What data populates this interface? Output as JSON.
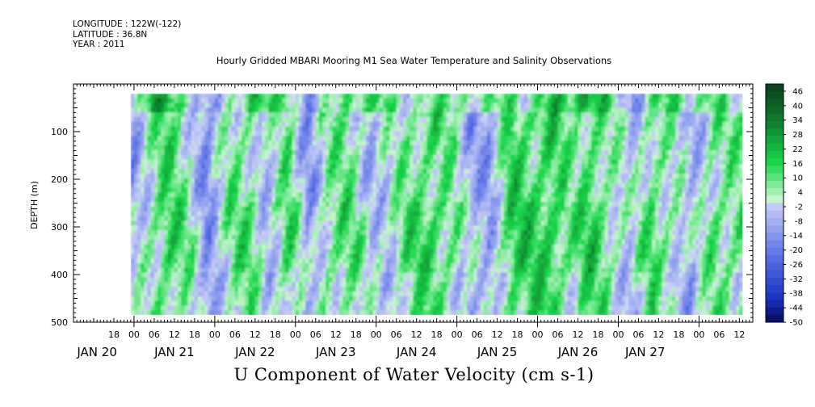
{
  "header": {
    "longitude": "LONGITUDE : 122W(-122)",
    "latitude": "LATITUDE : 36.8N",
    "year": "YEAR : 2011"
  },
  "chart_data": {
    "type": "heatmap",
    "title": "Hourly Gridded MBARI Mooring M1 Sea Water Temperature and Salinity Observations",
    "xlabel": "U Component of Water Velocity (cm s-1)",
    "ylabel": "DEPTH (m)",
    "ylim": [
      500,
      0
    ],
    "y_ticks": [
      "100",
      "200",
      "300",
      "400",
      "500"
    ],
    "y_tick_values": [
      100,
      200,
      300,
      400,
      500
    ],
    "x_hour_ticks": [
      "18",
      "00",
      "06",
      "12",
      "18",
      "00",
      "06",
      "12",
      "18",
      "00",
      "06",
      "12",
      "18",
      "00",
      "06",
      "12",
      "18",
      "00",
      "06",
      "12",
      "18",
      "00",
      "06",
      "12",
      "18",
      "00",
      "06",
      "12",
      "18",
      "00",
      "06",
      "12"
    ],
    "x_hour_values": [
      -6,
      0,
      6,
      12,
      18,
      24,
      30,
      36,
      42,
      48,
      54,
      60,
      66,
      72,
      78,
      84,
      90,
      96,
      102,
      108,
      114,
      120,
      126,
      132,
      138,
      144,
      150,
      156,
      162,
      168,
      174,
      180
    ],
    "x_day_labels": [
      "JAN 20",
      "JAN 21",
      "JAN 22",
      "JAN 23",
      "JAN 24",
      "JAN 25",
      "JAN 26",
      "JAN 27"
    ],
    "x_day_label_hours": [
      -11,
      12,
      36,
      60,
      84,
      108,
      132,
      152
    ],
    "xlim_hours": [
      -18,
      184
    ],
    "data_x_range_hours": [
      -1,
      181
    ],
    "data_y_range_m": [
      20,
      485
    ],
    "colorbar": {
      "labels": [
        "46",
        "40",
        "34",
        "28",
        "22",
        "16",
        "10",
        "4",
        "-2",
        "-8",
        "-14",
        "-20",
        "-26",
        "-32",
        "-38",
        "-44",
        "-50"
      ],
      "values": [
        46,
        40,
        34,
        28,
        22,
        16,
        10,
        4,
        -2,
        -8,
        -14,
        -20,
        -26,
        -32,
        -38,
        -44,
        -50
      ],
      "steps": 32,
      "colors": {
        "max": "#0a3d1a",
        "pos_dark": "#0f7a2c",
        "pos_mid": "#18d84a",
        "pos_light": "#c6f5cf",
        "neg_light": "#c9cff6",
        "neg_mid": "#5c73e6",
        "neg_dark": "#1833c0",
        "min": "#060c5a"
      }
    },
    "column_mean_profile": [
      {
        "hour": 0,
        "u": -8
      },
      {
        "hour": 6,
        "u": 6
      },
      {
        "hour": 10,
        "u": 12
      },
      {
        "hour": 16,
        "u": 4
      },
      {
        "hour": 22,
        "u": -14
      },
      {
        "hour": 28,
        "u": 4
      },
      {
        "hour": 34,
        "u": 8
      },
      {
        "hour": 40,
        "u": -6
      },
      {
        "hour": 46,
        "u": 10
      },
      {
        "hour": 52,
        "u": -12
      },
      {
        "hour": 58,
        "u": 6
      },
      {
        "hour": 64,
        "u": 8
      },
      {
        "hour": 70,
        "u": -4
      },
      {
        "hour": 76,
        "u": -2
      },
      {
        "hour": 82,
        "u": 8
      },
      {
        "hour": 88,
        "u": 12
      },
      {
        "hour": 94,
        "u": 6
      },
      {
        "hour": 100,
        "u": -8
      },
      {
        "hour": 106,
        "u": -10
      },
      {
        "hour": 112,
        "u": 14
      },
      {
        "hour": 118,
        "u": 12
      },
      {
        "hour": 124,
        "u": 16
      },
      {
        "hour": 130,
        "u": 4
      },
      {
        "hour": 136,
        "u": 14
      },
      {
        "hour": 142,
        "u": 4
      },
      {
        "hour": 148,
        "u": -6
      },
      {
        "hour": 154,
        "u": 10
      },
      {
        "hour": 160,
        "u": 2
      },
      {
        "hour": 166,
        "u": -10
      },
      {
        "hour": 172,
        "u": 8
      },
      {
        "hour": 178,
        "u": 6
      }
    ]
  }
}
